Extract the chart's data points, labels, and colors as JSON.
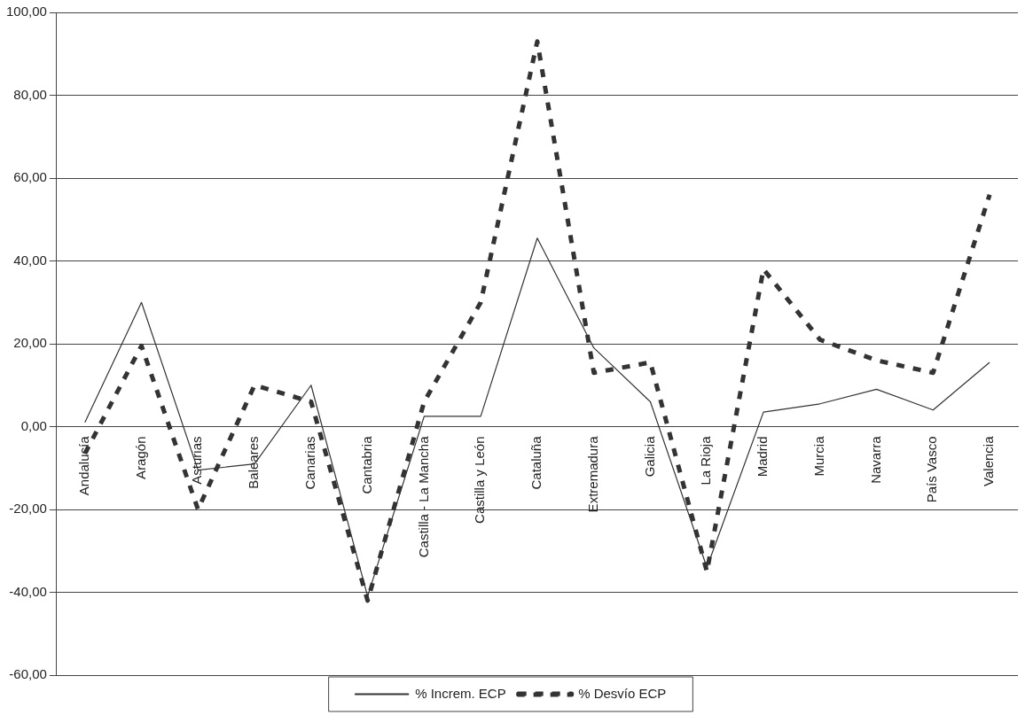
{
  "chart_data": {
    "type": "line",
    "categories": [
      "Andalucía",
      "Aragón",
      "Asturias",
      "Baleares",
      "Canarias",
      "Cantabria",
      "Castilla - La Mancha",
      "Castilla y León",
      "Cataluña",
      "Extremadura",
      "Galicia",
      "La Rioja",
      "Madrid",
      "Murcia",
      "Navarra",
      "País Vasco",
      "Valencia"
    ],
    "series": [
      {
        "name": "% Increm. ECP",
        "color": "#333333",
        "line_style": "solid",
        "values": [
          1,
          30,
          -10.5,
          -9,
          10,
          -41,
          2.5,
          2.5,
          45.5,
          19,
          6,
          -34,
          3.5,
          5.5,
          9,
          4,
          15.5
        ]
      },
      {
        "name": "% Desvío ECP",
        "color": "#333333",
        "line_style": "dashed",
        "values": [
          -6.5,
          19.5,
          -20,
          10,
          6,
          -42,
          6,
          30,
          93,
          13,
          15.5,
          -35,
          38,
          21,
          16,
          13,
          56
        ]
      }
    ],
    "ylim": [
      -60,
      100
    ],
    "yticks": [
      {
        "value": -60,
        "label": "-60,00"
      },
      {
        "value": -40,
        "label": "-40,00"
      },
      {
        "value": -20,
        "label": "-20,00"
      },
      {
        "value": 0,
        "label": "0,00"
      },
      {
        "value": 20,
        "label": "20,00"
      },
      {
        "value": 40,
        "label": "40,00"
      },
      {
        "value": 60,
        "label": "60,00"
      },
      {
        "value": 80,
        "label": "80,00"
      },
      {
        "value": 100,
        "label": "100,00"
      }
    ],
    "grid": "y",
    "legend": "bottom",
    "marker": "none"
  }
}
